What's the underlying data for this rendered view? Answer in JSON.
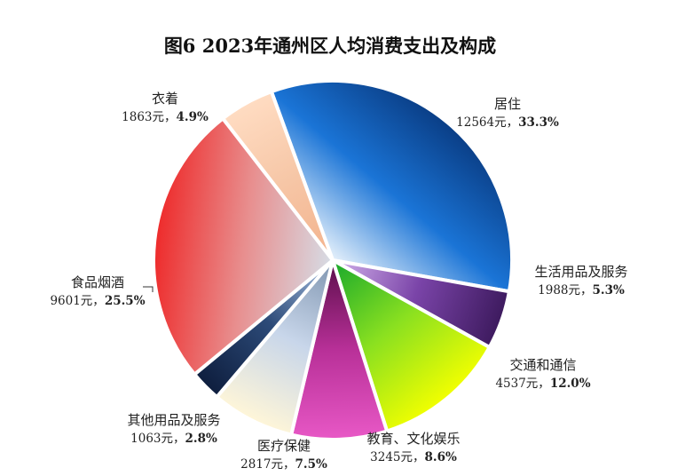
{
  "chart_data": {
    "type": "pie",
    "title": "图6 2023年通州区人均消费支出及构成",
    "unit": "元",
    "slices": [
      {
        "name": "居住",
        "value": 12564,
        "percent": "33.3%",
        "colors": [
          "#0a3e86",
          "#1a74d6",
          "#e6f1fb"
        ]
      },
      {
        "name": "生活用品及服务",
        "value": 1988,
        "percent": "5.3%",
        "colors": [
          "#3d1a5e",
          "#7a44a8",
          "#d4b3ec"
        ]
      },
      {
        "name": "交通和通信",
        "value": 4537,
        "percent": "12.0%",
        "colors": [
          "#f2ff00",
          "#8ae020",
          "#18a82c"
        ]
      },
      {
        "name": "教育、文化娱乐",
        "value": 3245,
        "percent": "8.6%",
        "colors": [
          "#e858c6",
          "#b83098",
          "#5a0e4a"
        ]
      },
      {
        "name": "医疗保健",
        "value": 2817,
        "percent": "7.5%",
        "colors": [
          "#fff6d8",
          "#c8d6ea",
          "#7f95b0"
        ]
      },
      {
        "name": "其他用品及服务",
        "value": 1063,
        "percent": "2.8%",
        "colors": [
          "#0e1e3e",
          "#2c4a78",
          "#a9c2e4"
        ]
      },
      {
        "name": "食品烟酒",
        "value": 9601,
        "percent": "25.5%",
        "colors": [
          "#ee2a2a",
          "#e88e8e",
          "#d6dde6"
        ]
      },
      {
        "name": "衣着",
        "value": 1863,
        "percent": "4.9%",
        "colors": [
          "#ffdcc2",
          "#f6c6a6",
          "#f3b28c"
        ]
      }
    ],
    "legend": "none"
  }
}
